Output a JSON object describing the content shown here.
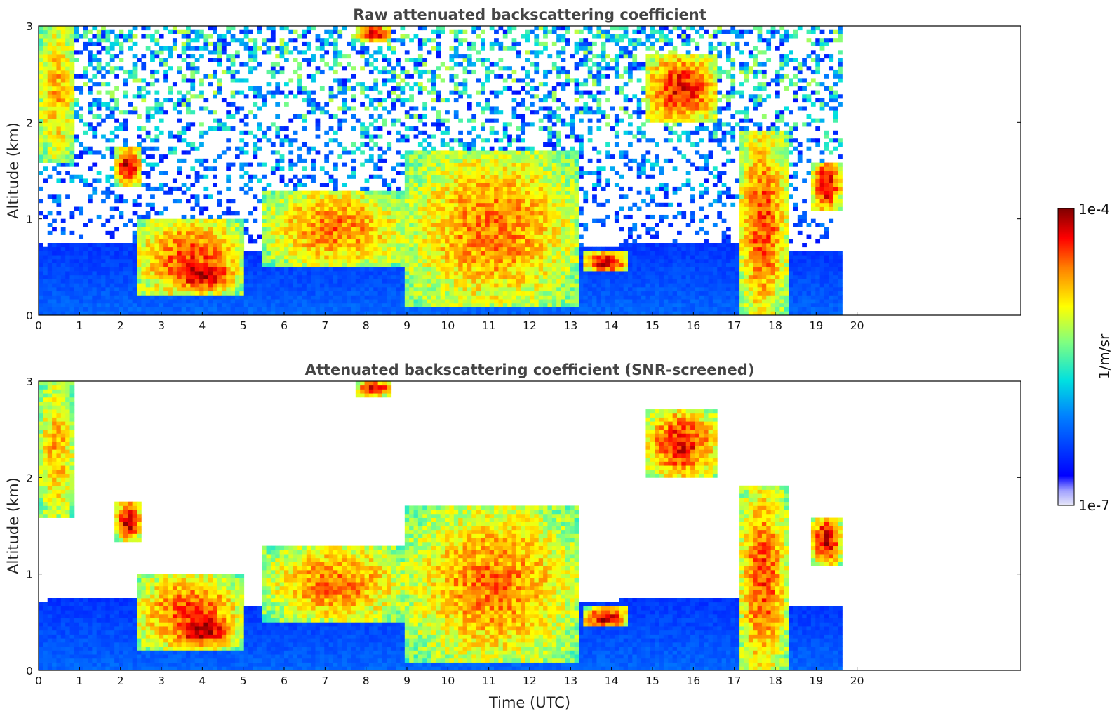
{
  "chart_data": [
    {
      "type": "heatmap",
      "title": "Raw attenuated backscattering coefficient",
      "ylabel": "Altitude (km)",
      "xlabel": "",
      "xlim": [
        0,
        24
      ],
      "ylim": [
        0,
        3
      ],
      "x_ticks": [
        "0",
        "1",
        "2",
        "3",
        "4",
        "5",
        "6",
        "7",
        "8",
        "9",
        "10",
        "11",
        "12",
        "13",
        "14",
        "15",
        "16",
        "17",
        "18",
        "19",
        "20"
      ],
      "y_ticks": [
        "0",
        "1",
        "2",
        "3"
      ],
      "data_end_time": 19.65,
      "features": [
        {
          "kind": "cloud",
          "t": [
            0.0,
            0.9
          ],
          "alt": [
            1.6,
            3.0
          ],
          "level": 0.75
        },
        {
          "kind": "cloud",
          "t": [
            1.9,
            2.5
          ],
          "alt": [
            1.35,
            1.75
          ],
          "level": 0.95
        },
        {
          "kind": "cloud",
          "t": [
            2.4,
            5.0
          ],
          "alt": [
            0.2,
            1.0
          ],
          "level": 0.85
        },
        {
          "kind": "cloud",
          "t": [
            3.2,
            4.8
          ],
          "alt": [
            0.25,
            0.6
          ],
          "level": 0.98
        },
        {
          "kind": "cloud",
          "t": [
            5.5,
            9.0
          ],
          "alt": [
            0.5,
            1.3
          ],
          "level": 0.8
        },
        {
          "kind": "cloud",
          "t": [
            7.8,
            8.6
          ],
          "alt": [
            2.85,
            3.0
          ],
          "level": 0.95
        },
        {
          "kind": "cloud",
          "t": [
            9.0,
            13.2
          ],
          "alt": [
            0.1,
            1.7
          ],
          "level": 0.8
        },
        {
          "kind": "cloud",
          "t": [
            13.3,
            14.4
          ],
          "alt": [
            0.45,
            0.65
          ],
          "level": 0.95
        },
        {
          "kind": "cloud",
          "t": [
            14.8,
            16.6
          ],
          "alt": [
            2.0,
            2.7
          ],
          "level": 0.9
        },
        {
          "kind": "cloud",
          "t": [
            17.1,
            18.3
          ],
          "alt": [
            0.0,
            1.9
          ],
          "level": 0.85
        },
        {
          "kind": "cloud",
          "t": [
            18.9,
            19.6
          ],
          "alt": [
            1.1,
            1.6
          ],
          "level": 0.95
        }
      ]
    },
    {
      "type": "heatmap",
      "title": "Attenuated backscattering coefficient (SNR-screened)",
      "ylabel": "Altitude (km)",
      "xlabel": "Time (UTC)",
      "xlim": [
        0,
        24
      ],
      "ylim": [
        0,
        3
      ],
      "x_ticks": [
        "0",
        "1",
        "2",
        "3",
        "4",
        "5",
        "6",
        "7",
        "8",
        "9",
        "10",
        "11",
        "12",
        "13",
        "14",
        "15",
        "16",
        "17",
        "18",
        "19",
        "20"
      ],
      "y_ticks": [
        "0",
        "1",
        "2",
        "3"
      ],
      "data_end_time": 19.65
    }
  ],
  "colorbar": {
    "label": "1/m/sr",
    "max_label": "1e-4",
    "min_label": "1e-7",
    "min_value": 1e-07,
    "max_value": 0.0001,
    "scale": "log",
    "colormap": [
      "#e8e8f8",
      "#0000ff",
      "#0080ff",
      "#00e0e0",
      "#80ff80",
      "#ffff00",
      "#ff8000",
      "#ff0000",
      "#800000"
    ]
  }
}
